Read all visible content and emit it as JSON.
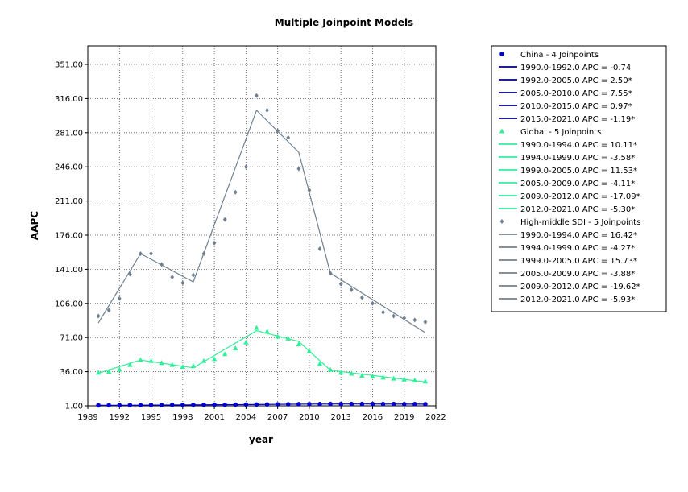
{
  "chart_data": {
    "type": "line",
    "title": "Multiple Joinpoint Models",
    "xlabel": "year",
    "ylabel": "AAPC",
    "xlim": [
      1989,
      2022
    ],
    "ylim": [
      1.0,
      351.0
    ],
    "x_ticks": [
      "1989",
      "1992",
      "1995",
      "1998",
      "2001",
      "2004",
      "2007",
      "2010",
      "2013",
      "2016",
      "2019",
      "2022"
    ],
    "y_ticks": [
      "1.00",
      "36.00",
      "71.00",
      "106.00",
      "141.00",
      "176.00",
      "211.00",
      "246.00",
      "281.00",
      "316.00",
      "351.00"
    ],
    "grid": true,
    "legend_position": "right",
    "series": [
      {
        "name": "China - 4 Joinpoints",
        "color": "#0000cc",
        "marker": "circle",
        "x": [
          1990,
          1991,
          1992,
          1993,
          1994,
          1995,
          1996,
          1997,
          1998,
          1999,
          2000,
          2001,
          2002,
          2003,
          2004,
          2005,
          2006,
          2007,
          2008,
          2009,
          2010,
          2011,
          2012,
          2013,
          2014,
          2015,
          2016,
          2017,
          2018,
          2019,
          2020,
          2021
        ],
        "observed": [
          1.5,
          1.6,
          1.6,
          1.7,
          1.7,
          1.8,
          1.8,
          1.9,
          1.9,
          2.0,
          2.0,
          2.1,
          2.1,
          2.2,
          2.2,
          2.3,
          2.4,
          2.5,
          2.6,
          2.7,
          2.8,
          2.8,
          2.9,
          2.9,
          2.9,
          2.9,
          2.9,
          2.9,
          2.9,
          2.8,
          2.8,
          2.7
        ],
        "fit_x": [
          1990,
          1992,
          2005,
          2010,
          2015,
          2021
        ],
        "fit_y": [
          1.5,
          1.5,
          2.3,
          2.8,
          2.9,
          2.7
        ],
        "legend_segments": [
          "1990.0-1992.0 APC  =  -0.74",
          "1992.0-2005.0 APC  =  2.50*",
          "2005.0-2010.0 APC  =  7.55*",
          "2010.0-2015.0 APC  =  0.97*",
          "2015.0-2021.0 APC  =  -1.19*"
        ]
      },
      {
        "name": "Global - 5 Joinpoints",
        "color": "#33ee99",
        "marker": "triangle",
        "x": [
          1990,
          1991,
          1992,
          1993,
          1994,
          1995,
          1996,
          1997,
          1998,
          1999,
          2000,
          2001,
          2002,
          2003,
          2004,
          2005,
          2006,
          2007,
          2008,
          2009,
          2010,
          2011,
          2012,
          2013,
          2014,
          2015,
          2016,
          2017,
          2018,
          2019,
          2020,
          2021
        ],
        "observed": [
          35,
          36,
          38,
          43,
          48,
          47,
          45,
          43,
          41,
          42,
          47,
          49,
          54,
          60,
          66,
          81,
          77,
          72,
          70,
          64,
          57,
          44,
          38,
          35,
          34,
          32,
          31,
          30,
          29,
          28,
          27,
          26
        ],
        "fit_x": [
          1990,
          1994,
          1999,
          2005,
          2009,
          2012,
          2021
        ],
        "fit_y": [
          34.5,
          48,
          40,
          78,
          67,
          37.5,
          25.5
        ],
        "legend_segments": [
          "1990.0-1994.0 APC  =  10.11*",
          "1994.0-1999.0 APC  =  -3.58*",
          "1999.0-2005.0 APC  =  11.53*",
          "2005.0-2009.0 APC  =  -4.11*",
          "2009.0-2012.0 APC  =  -17.09*",
          "2012.0-2021.0 APC  =  -5.30*"
        ]
      },
      {
        "name": "High-middle SDI - 5 Joinpoints",
        "color": "#708090",
        "marker": "diamond",
        "x": [
          1990,
          1991,
          1992,
          1993,
          1994,
          1995,
          1996,
          1997,
          1998,
          1999,
          2000,
          2001,
          2002,
          2003,
          2004,
          2005,
          2006,
          2007,
          2008,
          2009,
          2010,
          2011,
          2012,
          2013,
          2014,
          2015,
          2016,
          2017,
          2018,
          2019,
          2020,
          2021
        ],
        "observed": [
          93,
          99,
          111,
          136,
          157,
          157,
          146,
          133,
          127,
          135,
          157,
          168,
          192,
          220,
          246,
          319,
          304,
          283,
          276,
          244,
          222,
          162,
          137,
          126,
          120,
          112,
          106,
          97,
          93,
          91,
          89,
          87
        ],
        "fit_x": [
          1990,
          1994,
          1999,
          2005,
          2009,
          2012,
          2021
        ],
        "fit_y": [
          86,
          157,
          128,
          304,
          261,
          137,
          76
        ],
        "legend_segments": [
          "1990.0-1994.0 APC  =  16.42*",
          "1994.0-1999.0 APC  =  -4.27*",
          "1999.0-2005.0 APC  =  15.73*",
          "2005.0-2009.0 APC  =  -3.88*",
          "2009.0-2012.0 APC  =  -19.62*",
          "2012.0-2021.0 APC  =  -5.93*"
        ]
      }
    ]
  }
}
